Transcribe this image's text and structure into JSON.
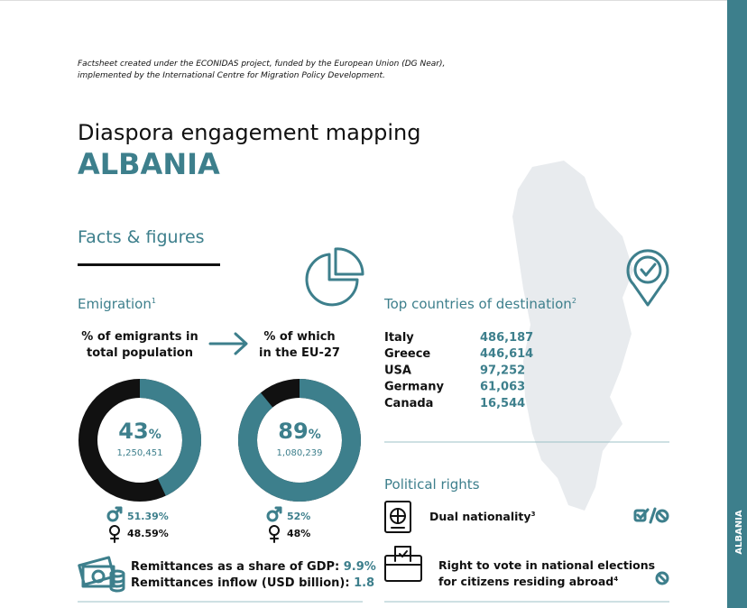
{
  "header": {
    "note_lines": [
      "Factsheet created under the ECONIDAS project, funded by the European Union (DG Near),",
      "implemented by the International Centre for Migration Policy Development."
    ],
    "title": "Diaspora engagement mapping",
    "country": "ALBANIA"
  },
  "sidebar_label": "ALBANIA",
  "facts_heading": "Facts & figures",
  "emigration": {
    "heading": "Emigration",
    "ref": "1",
    "donuts": [
      {
        "label_lines": [
          "% of emigrants in",
          "total population"
        ],
        "percent": 43,
        "percent_unit": "%",
        "count": "1,250,451",
        "male": "51.39%",
        "female": "48.59%"
      },
      {
        "label_lines": [
          "% of which",
          "in the EU-27"
        ],
        "percent": 89,
        "percent_unit": "%",
        "count": "1,080,239",
        "male": "52%",
        "female": "48%"
      }
    ]
  },
  "remittances": {
    "rows": [
      {
        "label": "Remittances as a share of GDP:",
        "value": "9.9%"
      },
      {
        "label": "Remittances inflow (USD billion):",
        "value": "1.8"
      }
    ]
  },
  "destinations": {
    "heading": "Top countries of destination",
    "ref": "2",
    "rows": [
      [
        "Italy",
        "486,187"
      ],
      [
        "Greece",
        "446,614"
      ],
      [
        "USA",
        "97,252"
      ],
      [
        "Germany",
        "61,063"
      ],
      [
        "Canada",
        "16,544"
      ]
    ]
  },
  "political_rights": {
    "heading": "Political rights",
    "items": [
      {
        "label_lines": [
          "Dual nationality"
        ],
        "ref": "3"
      },
      {
        "label_lines": [
          "Right to vote in national elections",
          "for citizens residing abroad"
        ],
        "ref": "4"
      }
    ]
  }
}
